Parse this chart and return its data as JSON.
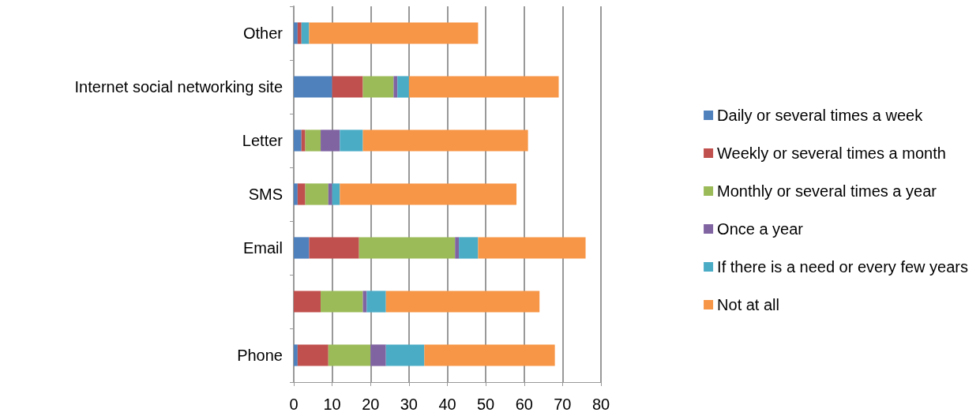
{
  "chart_data": {
    "type": "bar",
    "orientation": "horizontal",
    "stacked": true,
    "categories": [
      "Other",
      "Internet social networking site",
      "Letter",
      "SMS",
      "Email",
      null,
      "Phone"
    ],
    "series": [
      {
        "name": "Daily or several times a week",
        "color": "#4f81bd",
        "values": [
          1,
          10,
          2,
          1,
          4,
          0,
          1
        ]
      },
      {
        "name": "Weekly or several times a month",
        "color": "#c0504d",
        "values": [
          1,
          8,
          1,
          2,
          13,
          7,
          8
        ]
      },
      {
        "name": "Monthly or several times a year",
        "color": "#9bbb59",
        "values": [
          0,
          8,
          4,
          6,
          25,
          11,
          11
        ]
      },
      {
        "name": "Once a year",
        "color": "#8064a2",
        "values": [
          0,
          1,
          5,
          1,
          1,
          1,
          4
        ]
      },
      {
        "name": "If there is a need or every few years",
        "color": "#4bacc6",
        "values": [
          2,
          3,
          6,
          2,
          5,
          5,
          10
        ]
      },
      {
        "name": "Not at all",
        "color": "#f79646",
        "values": [
          44,
          39,
          43,
          46,
          28,
          40,
          34
        ]
      }
    ],
    "xlim": [
      0,
      80
    ],
    "xticks": [
      0,
      10,
      20,
      30,
      40,
      50,
      60,
      70,
      80
    ],
    "grid": "x",
    "legend": "right"
  }
}
